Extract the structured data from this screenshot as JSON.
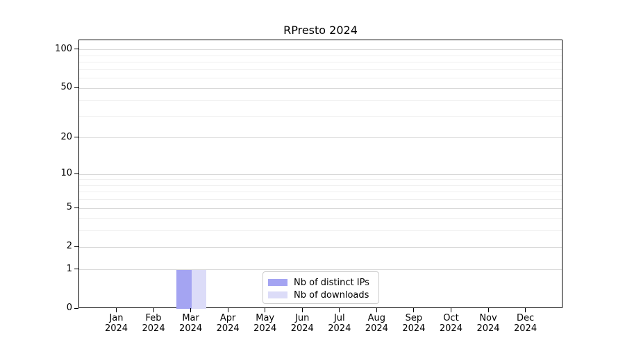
{
  "chart_data": {
    "type": "bar",
    "title": "RPresto 2024",
    "categories": [
      "Jan 2024",
      "Feb 2024",
      "Mar 2024",
      "Apr 2024",
      "May 2024",
      "Jun 2024",
      "Jul 2024",
      "Aug 2024",
      "Sep 2024",
      "Oct 2024",
      "Nov 2024",
      "Dec 2024"
    ],
    "series": [
      {
        "name": "Nb of distinct IPs",
        "color": "#a4a4f2",
        "values": [
          0,
          0,
          1,
          0,
          0,
          0,
          0,
          0,
          0,
          0,
          0,
          0
        ]
      },
      {
        "name": "Nb of downloads",
        "color": "#dcdcf8",
        "values": [
          0,
          0,
          1,
          0,
          0,
          0,
          0,
          0,
          0,
          0,
          0,
          0
        ]
      }
    ],
    "xlabel": "",
    "ylabel": "",
    "yscale": "log1p",
    "ylim": [
      0,
      119
    ],
    "y_ticks": [
      0,
      1,
      2,
      5,
      10,
      20,
      50,
      100
    ],
    "y_minor_gridlines": [
      3,
      4,
      6,
      7,
      8,
      9,
      30,
      40,
      60,
      70,
      80,
      90
    ],
    "grid": "horizontal",
    "legend": {
      "position": "lower-center"
    },
    "colors": {
      "axis": "#000000",
      "text": "#000000",
      "major_grid": "#d9d9d9",
      "minor_grid": "#efefef",
      "legend_border": "#cccccc",
      "background": "#ffffff"
    }
  }
}
